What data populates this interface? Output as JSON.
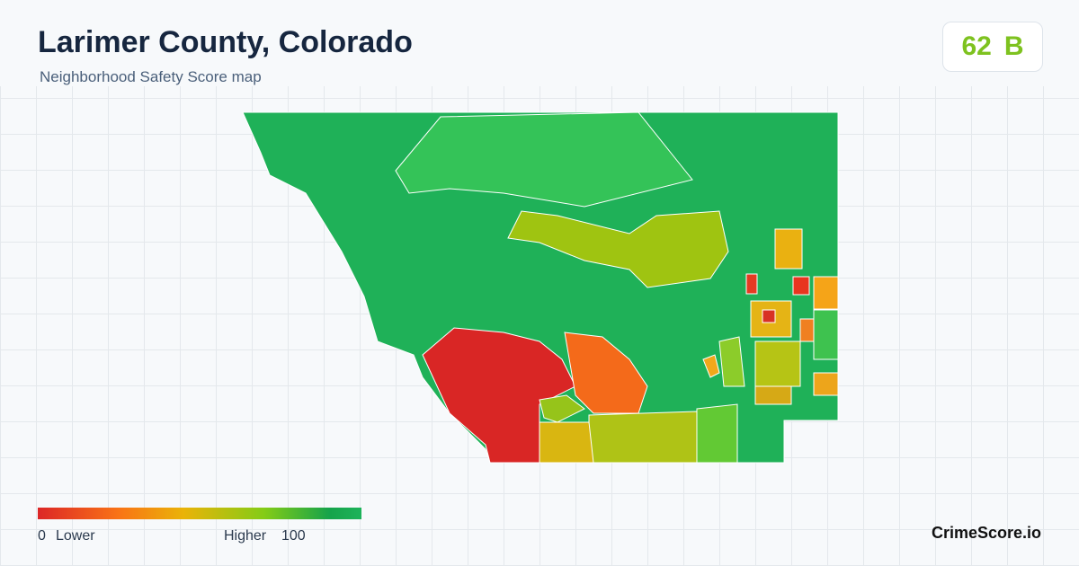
{
  "header": {
    "title": "Larimer County, Colorado",
    "subtitle": "Neighborhood Safety Score map"
  },
  "score": {
    "value": 62,
    "grade": "B"
  },
  "legend": {
    "min": 0,
    "min_label": "Lower",
    "max_label": "Higher",
    "max": 100
  },
  "footer": {
    "brand": "CrimeScore.io"
  }
}
